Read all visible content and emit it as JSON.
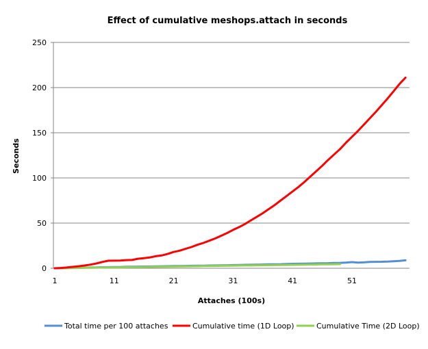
{
  "chart_data": {
    "type": "line",
    "title": "Effect of cumulative  meshops.attach in seconds",
    "xlabel": "Attaches (100s)",
    "ylabel": "Seconds",
    "ylim": [
      0,
      250
    ],
    "yticks": [
      0,
      50,
      100,
      150,
      200,
      250
    ],
    "xlim": [
      1,
      60
    ],
    "xticks": [
      1,
      11,
      21,
      31,
      41,
      51
    ],
    "grid": "horizontal",
    "legend_position": "bottom",
    "series": [
      {
        "name": "Total time per 100 attaches",
        "color": "#558ed5",
        "values": [
          0,
          0.1,
          0.2,
          0.3,
          0.5,
          0.6,
          0.8,
          0.9,
          1.1,
          1.2,
          1.3,
          1.4,
          1.6,
          1.7,
          1.8,
          1.9,
          2.0,
          2.1,
          2.2,
          2.3,
          2.4,
          2.5,
          2.6,
          2.7,
          2.8,
          2.9,
          3.0,
          3.1,
          3.2,
          3.3,
          3.5,
          3.6,
          3.8,
          3.9,
          4.0,
          4.1,
          4.3,
          4.4,
          4.5,
          4.7,
          4.9,
          5.0,
          5.1,
          5.2,
          5.4,
          5.5,
          5.6,
          5.8,
          6.0,
          6.3,
          6.8,
          6.3,
          6.5,
          7.0,
          7.1,
          7.2,
          7.4,
          7.8,
          8.2,
          8.8
        ]
      },
      {
        "name": "Cumulative time (1D Loop)",
        "color": "#ff0000",
        "values": [
          0,
          0.3,
          0.8,
          1.5,
          2.2,
          3,
          4,
          5.3,
          7,
          8.3,
          8.4,
          8.5,
          9,
          9.2,
          10.5,
          11.2,
          12,
          13.3,
          14.2,
          15.8,
          18,
          19.5,
          21.5,
          23.5,
          26,
          28,
          30.5,
          33,
          36,
          39,
          42.5,
          45.5,
          49,
          53,
          57,
          61,
          65.5,
          70,
          75,
          80,
          85,
          90,
          95.5,
          101.5,
          107.5,
          113.5,
          120,
          126,
          132,
          139,
          145.5,
          152,
          159,
          166,
          173,
          180.5,
          188,
          196,
          204,
          211
        ]
      },
      {
        "name": "Cumulative Time  (2D Loop)",
        "color": "#92d050",
        "values": [
          0,
          0.1,
          0.2,
          0.3,
          0.4,
          0.5,
          0.6,
          0.7,
          0.8,
          0.9,
          1.0,
          1.0,
          1.1,
          1.2,
          1.3,
          1.4,
          1.5,
          1.6,
          1.7,
          1.8,
          1.9,
          2.0,
          2.1,
          2.2,
          2.3,
          2.4,
          2.5,
          2.6,
          2.7,
          2.8,
          2.9,
          3.0,
          3.1,
          3.1,
          3.2,
          3.3,
          3.4,
          3.5,
          3.6,
          3.7,
          3.8,
          3.9,
          4.0,
          4.1,
          4.2,
          4.3,
          4.4,
          4.5,
          4.6
        ]
      }
    ]
  }
}
